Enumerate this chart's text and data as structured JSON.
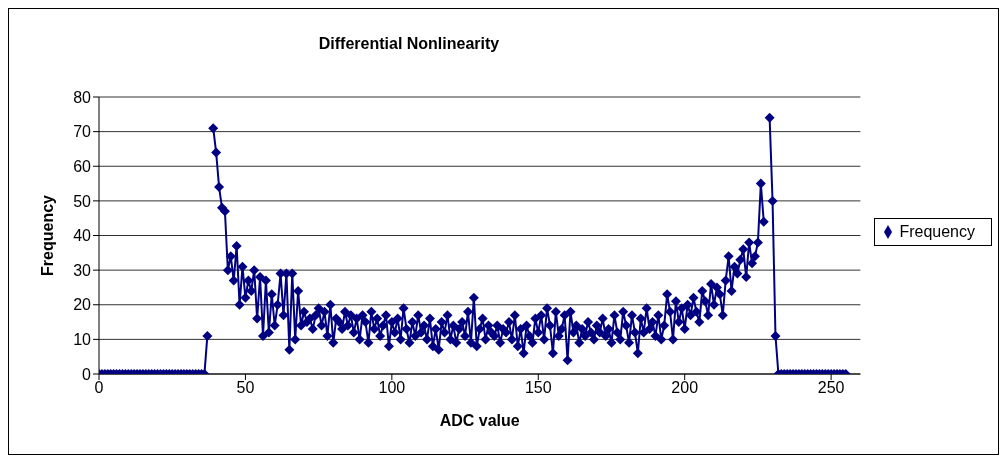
{
  "chart_data": {
    "type": "line",
    "title": "Differential Nonlinearity",
    "xlabel": "ADC value",
    "ylabel": "Frequency",
    "x": [
      0,
      1,
      2,
      3,
      4,
      5,
      6,
      7,
      8,
      9,
      10,
      11,
      12,
      13,
      14,
      15,
      16,
      17,
      18,
      19,
      20,
      21,
      22,
      23,
      24,
      25,
      26,
      27,
      28,
      29,
      30,
      31,
      32,
      33,
      34,
      35,
      36,
      37,
      38,
      39,
      40,
      41,
      42,
      43,
      44,
      45,
      46,
      47,
      48,
      49,
      50,
      51,
      52,
      53,
      54,
      55,
      56,
      57,
      58,
      59,
      60,
      61,
      62,
      63,
      64,
      65,
      66,
      67,
      68,
      69,
      70,
      71,
      72,
      73,
      74,
      75,
      76,
      77,
      78,
      79,
      80,
      81,
      82,
      83,
      84,
      85,
      86,
      87,
      88,
      89,
      90,
      91,
      92,
      93,
      94,
      95,
      96,
      97,
      98,
      99,
      100,
      101,
      102,
      103,
      104,
      105,
      106,
      107,
      108,
      109,
      110,
      111,
      112,
      113,
      114,
      115,
      116,
      117,
      118,
      119,
      120,
      121,
      122,
      123,
      124,
      125,
      126,
      127,
      128,
      129,
      130,
      131,
      132,
      133,
      134,
      135,
      136,
      137,
      138,
      139,
      140,
      141,
      142,
      143,
      144,
      145,
      146,
      147,
      148,
      149,
      150,
      151,
      152,
      153,
      154,
      155,
      156,
      157,
      158,
      159,
      160,
      161,
      162,
      163,
      164,
      165,
      166,
      167,
      168,
      169,
      170,
      171,
      172,
      173,
      174,
      175,
      176,
      177,
      178,
      179,
      180,
      181,
      182,
      183,
      184,
      185,
      186,
      187,
      188,
      189,
      190,
      191,
      192,
      193,
      194,
      195,
      196,
      197,
      198,
      199,
      200,
      201,
      202,
      203,
      204,
      205,
      206,
      207,
      208,
      209,
      210,
      211,
      212,
      213,
      214,
      215,
      216,
      217,
      218,
      219,
      220,
      221,
      222,
      223,
      224,
      225,
      226,
      227,
      228,
      229,
      230,
      231,
      232,
      233,
      234,
      235,
      236,
      237,
      238,
      239,
      240,
      241,
      242,
      243,
      244,
      245,
      246,
      247,
      248,
      249,
      250,
      251,
      252,
      253,
      254,
      255
    ],
    "series": [
      {
        "name": "Frequency",
        "color": "#000080",
        "values": [
          0,
          0,
          0,
          0,
          0,
          0,
          0,
          0,
          0,
          0,
          0,
          0,
          0,
          0,
          0,
          0,
          0,
          0,
          0,
          0,
          0,
          0,
          0,
          0,
          0,
          0,
          0,
          0,
          0,
          0,
          0,
          0,
          0,
          0,
          0,
          0,
          0,
          11,
          null,
          71,
          64,
          54,
          48,
          47,
          30,
          34,
          27,
          37,
          20,
          31,
          22,
          27,
          24,
          30,
          16,
          28,
          11,
          27,
          12,
          23,
          14,
          20,
          29,
          17,
          29,
          7,
          29,
          10,
          24,
          14,
          18,
          15,
          16,
          13,
          17,
          19,
          14,
          18,
          11,
          20,
          9,
          16,
          15,
          13,
          18,
          14,
          17,
          12,
          16,
          10,
          17,
          15,
          9,
          18,
          13,
          16,
          11,
          14,
          17,
          8,
          15,
          12,
          16,
          10,
          19,
          13,
          9,
          15,
          11,
          17,
          12,
          14,
          10,
          16,
          8,
          13,
          7,
          15,
          12,
          17,
          10,
          14,
          9,
          13,
          15,
          11,
          18,
          9,
          22,
          8,
          13,
          16,
          10,
          14,
          12,
          11,
          14,
          9,
          13,
          12,
          15,
          10,
          17,
          8,
          13,
          6,
          14,
          11,
          9,
          16,
          12,
          17,
          10,
          19,
          14,
          6,
          18,
          11,
          13,
          17,
          4,
          18,
          12,
          14,
          9,
          13,
          11,
          15,
          12,
          10,
          14,
          12,
          16,
          11,
          13,
          9,
          17,
          12,
          10,
          18,
          14,
          9,
          17,
          12,
          6,
          16,
          12,
          19,
          13,
          15,
          11,
          17,
          10,
          14,
          23,
          18,
          10,
          21,
          15,
          19,
          13,
          20,
          17,
          22,
          18,
          15,
          24,
          21,
          17,
          26,
          20,
          25,
          23,
          17,
          27,
          34,
          24,
          31,
          29,
          33,
          36,
          28,
          38,
          32,
          34,
          38,
          55,
          44,
          null,
          74,
          50,
          11,
          0,
          0,
          0,
          0,
          0,
          0,
          0,
          0,
          0,
          0,
          0,
          0,
          0,
          0,
          0,
          0,
          0,
          0,
          0,
          0,
          0,
          0,
          0,
          0
        ]
      }
    ],
    "xlim": [
      0,
      260
    ],
    "xticks": [
      0,
      50,
      100,
      150,
      200,
      250
    ],
    "ylim": [
      0,
      80
    ],
    "yticks": [
      0,
      10,
      20,
      30,
      40,
      50,
      60,
      70,
      80
    ],
    "grid": "y",
    "legend": "right",
    "marker": "diamond",
    "line_style": "solid"
  }
}
